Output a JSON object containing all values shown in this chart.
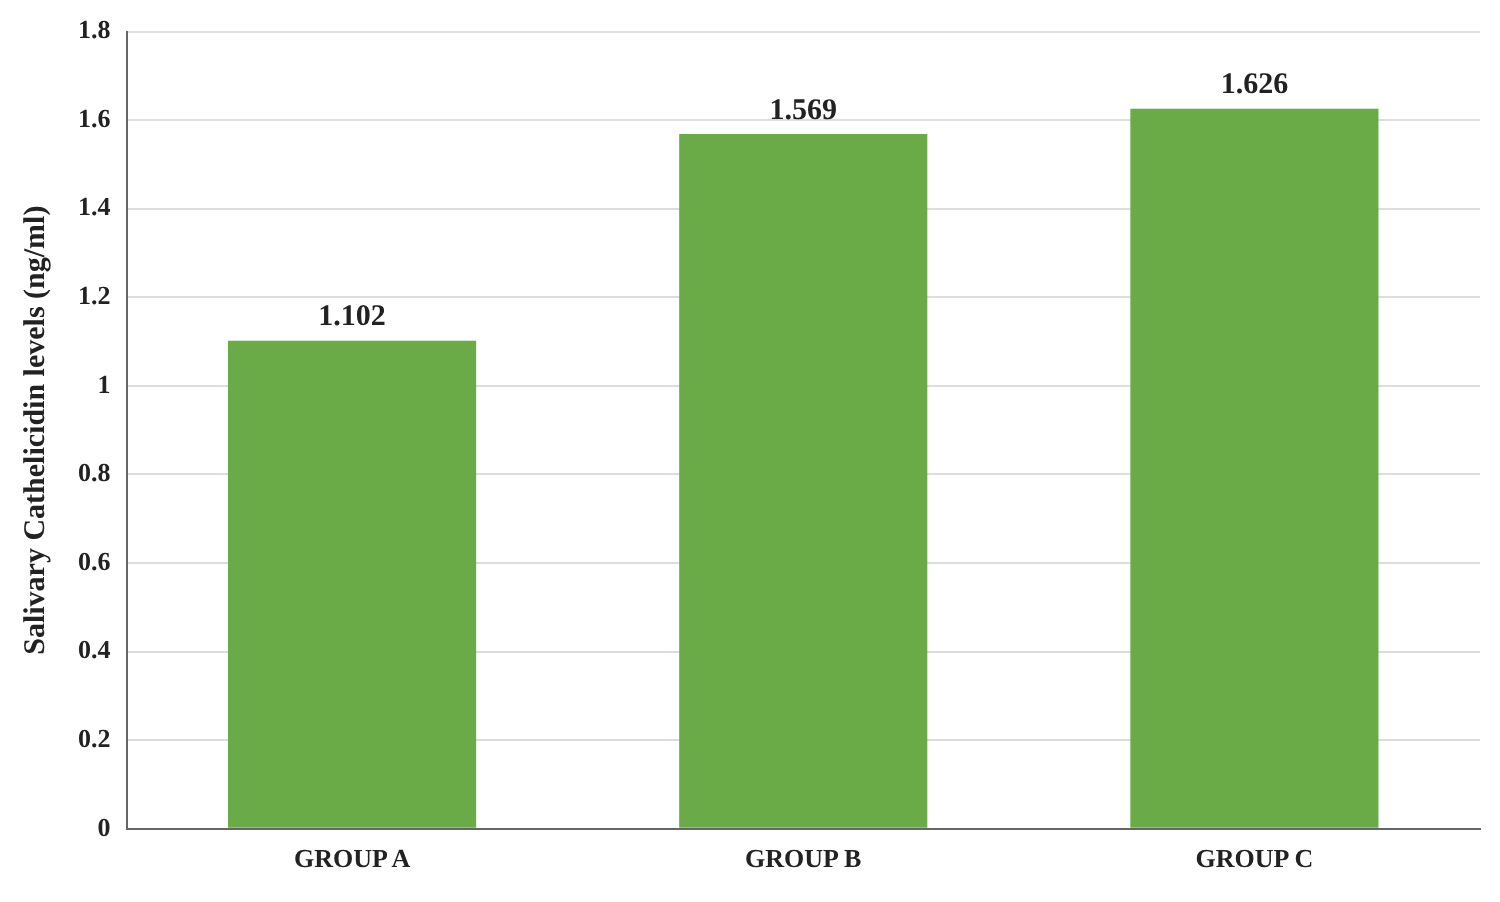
{
  "chart_data": {
    "type": "bar",
    "ylabel": "Salivary Cathelicidin levels (ng/ml)",
    "categories": [
      "GROUP A",
      "GROUP B",
      "GROUP C"
    ],
    "values": [
      1.102,
      1.569,
      1.626
    ],
    "color": "#6aab47",
    "ylim": [
      0,
      1.8
    ],
    "yticks": [
      0,
      0.2,
      0.4,
      0.6,
      0.8,
      1,
      1.2,
      1.4,
      1.6,
      1.8
    ],
    "grid": "y",
    "data_labels": true,
    "legend": false
  }
}
